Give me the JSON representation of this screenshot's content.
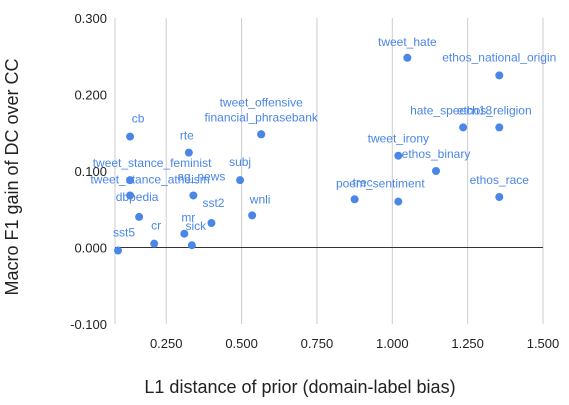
{
  "chart_data": {
    "type": "scatter",
    "xlabel": "L1 distance of prior (domain-label bias)",
    "ylabel": "Macro F1 gain of DC over CC",
    "xlim": [
      0.08,
      1.5
    ],
    "ylim": [
      -0.1,
      0.3
    ],
    "xticks": [
      "0.250",
      "0.500",
      "0.750",
      "1.000",
      "1.250",
      "1.500"
    ],
    "yticks": [
      "-0.100",
      "0.000",
      "0.100",
      "0.200",
      "0.300"
    ],
    "grid": "vertical",
    "series_color": "#4a86e8",
    "points": [
      {
        "label": "tweet_hate",
        "x": 1.05,
        "y": 0.248
      },
      {
        "label": "ethos_national_origin",
        "x": 1.355,
        "y": 0.225
      },
      {
        "label": "tweet_offensive",
        "x": 0.565,
        "y": 0.148
      },
      {
        "label": "financial_phrasebank",
        "x": 0.565,
        "y": 0.148
      },
      {
        "label": "cb",
        "x": 0.13,
        "y": 0.145
      },
      {
        "label": "rte",
        "x": 0.325,
        "y": 0.124
      },
      {
        "label": "hate_speech18",
        "x": 1.235,
        "y": 0.157
      },
      {
        "label": "ethos_religion",
        "x": 1.355,
        "y": 0.157
      },
      {
        "label": "tweet_irony",
        "x": 1.02,
        "y": 0.12
      },
      {
        "label": "ethos_binary",
        "x": 1.145,
        "y": 0.1
      },
      {
        "label": "subj",
        "x": 0.495,
        "y": 0.088
      },
      {
        "label": "tweet_stance_feminist",
        "x": 0.13,
        "y": 0.088
      },
      {
        "label": "tweet_stance_atheism",
        "x": 0.13,
        "y": 0.068
      },
      {
        "label": "ag_news",
        "x": 0.34,
        "y": 0.068
      },
      {
        "label": "wnli",
        "x": 0.535,
        "y": 0.042
      },
      {
        "label": "trec",
        "x": 0.875,
        "y": 0.063
      },
      {
        "label": "poem_sentiment",
        "x": 1.02,
        "y": 0.06
      },
      {
        "label": "ethos_race",
        "x": 1.355,
        "y": 0.066
      },
      {
        "label": "dbpedia",
        "x": 0.16,
        "y": 0.04
      },
      {
        "label": "sst2",
        "x": 0.4,
        "y": 0.032
      },
      {
        "label": "mr",
        "x": 0.31,
        "y": 0.018
      },
      {
        "label": "cr",
        "x": 0.21,
        "y": 0.005
      },
      {
        "label": "sick",
        "x": 0.335,
        "y": 0.003
      },
      {
        "label": "sst5",
        "x": 0.09,
        "y": -0.004
      }
    ]
  }
}
